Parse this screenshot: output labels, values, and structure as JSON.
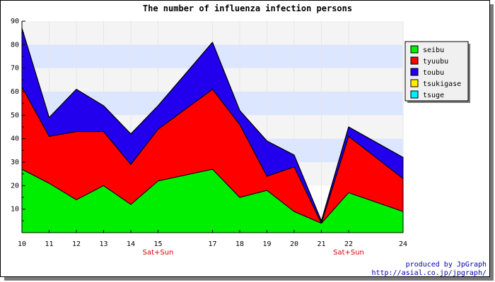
{
  "chart_data": {
    "type": "area",
    "stacked": true,
    "title": "The number of influenza infection persons",
    "x": [
      10,
      11,
      12,
      13,
      14,
      15,
      17,
      18,
      19,
      20,
      21,
      22,
      24
    ],
    "x_sublabels": [
      "",
      "",
      "",
      "",
      "",
      "Sat+Sun",
      "",
      "",
      "",
      "",
      "",
      "Sat+Sun",
      ""
    ],
    "ylim": [
      0,
      90
    ],
    "yticks": [
      10,
      20,
      30,
      40,
      50,
      60,
      70,
      80,
      90
    ],
    "series": [
      {
        "name": "seibu",
        "color": "#00ee00",
        "values": [
          27,
          21,
          14,
          20,
          12,
          22,
          27,
          15,
          18,
          9,
          4,
          17,
          9
        ]
      },
      {
        "name": "tyuubu",
        "color": "#ff0000",
        "values": [
          35,
          20,
          29,
          23,
          17,
          22,
          34,
          31,
          6,
          19,
          0,
          24,
          14
        ]
      },
      {
        "name": "toubu",
        "color": "#2200ee",
        "values": [
          25,
          8,
          18,
          11,
          13,
          10,
          20,
          6,
          15,
          5,
          1,
          4,
          9
        ]
      },
      {
        "name": "tsukigase",
        "color": "#ffee00",
        "values": [
          0,
          0,
          0,
          0,
          0,
          0,
          0,
          0,
          0,
          0,
          0,
          0,
          0
        ]
      },
      {
        "name": "tsuge",
        "color": "#00eeff",
        "values": [
          0,
          0,
          0,
          0,
          0,
          0,
          0,
          0,
          0,
          0,
          0,
          0,
          0
        ]
      }
    ],
    "grid": true,
    "legend_position": "top-right"
  },
  "credit": {
    "line1": "produced by JpGraph",
    "line2": "http://asial.co.jp/jpgraph/"
  }
}
